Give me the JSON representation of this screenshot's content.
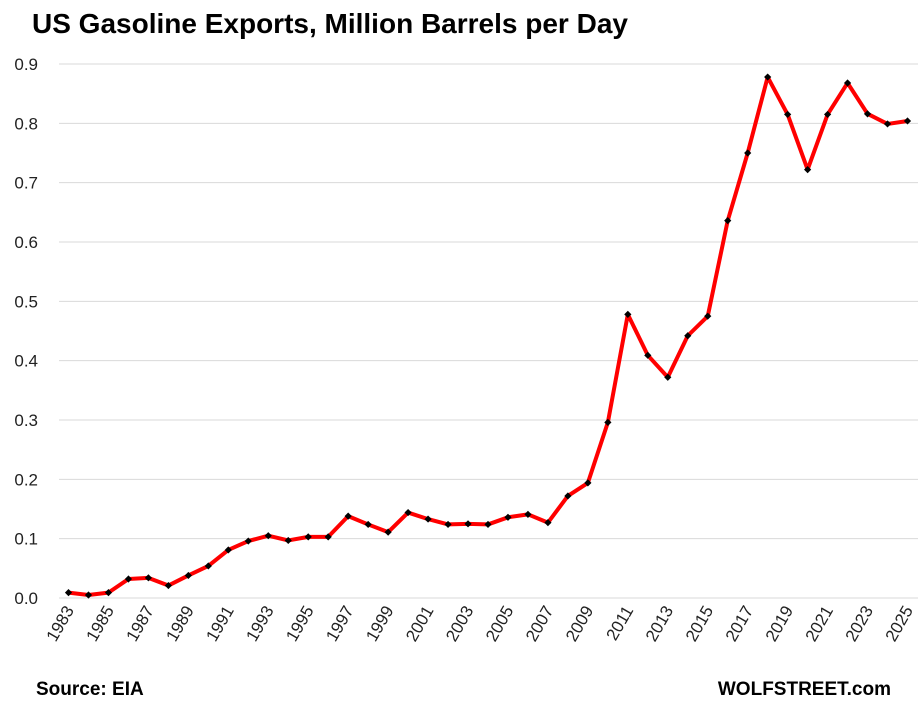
{
  "title": "US Gasoline Exports, Million Barrels per Day",
  "source": "Source: EIA",
  "brand": "WOLFSTREET.com",
  "colors": {
    "line": "#ff0000",
    "marker": "#000000",
    "grid": "#d9d9d9"
  },
  "chart_data": {
    "type": "line",
    "title": "US Gasoline Exports, Million Barrels per Day",
    "xlabel": "",
    "ylabel": "",
    "ylim": [
      0,
      0.9
    ],
    "yticks": [
      "0.0",
      "0.1",
      "0.2",
      "0.3",
      "0.4",
      "0.5",
      "0.6",
      "0.7",
      "0.8",
      "0.9"
    ],
    "xtick_labels": [
      "1983",
      "1985",
      "1987",
      "1989",
      "1991",
      "1993",
      "1995",
      "1997",
      "1999",
      "2001",
      "2003",
      "2005",
      "2007",
      "2009",
      "2011",
      "2013",
      "2015",
      "2017",
      "2019",
      "2021",
      "2023",
      "2025"
    ],
    "grid": true,
    "legend": "none",
    "x": [
      1983,
      1984,
      1985,
      1986,
      1987,
      1988,
      1989,
      1990,
      1991,
      1992,
      1993,
      1994,
      1995,
      1996,
      1997,
      1998,
      1999,
      2000,
      2001,
      2002,
      2003,
      2004,
      2005,
      2006,
      2007,
      2008,
      2009,
      2010,
      2011,
      2012,
      2013,
      2014,
      2015,
      2016,
      2017,
      2018,
      2019,
      2020,
      2021,
      2022,
      2023,
      2024,
      2025
    ],
    "series": [
      {
        "values": [
          0.009,
          0.005,
          0.009,
          0.032,
          0.034,
          0.021,
          0.038,
          0.054,
          0.081,
          0.096,
          0.105,
          0.097,
          0.103,
          0.103,
          0.138,
          0.124,
          0.111,
          0.144,
          0.133,
          0.124,
          0.125,
          0.124,
          0.136,
          0.141,
          0.127,
          0.172,
          0.194,
          0.296,
          0.478,
          0.409,
          0.372,
          0.442,
          0.475,
          0.636,
          0.75,
          0.878,
          0.815,
          0.722,
          0.815,
          0.868,
          0.816,
          0.799,
          0.804
        ]
      }
    ]
  }
}
